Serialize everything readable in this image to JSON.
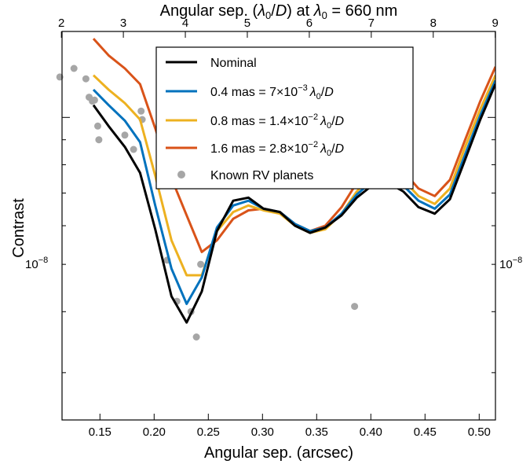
{
  "chart_data": {
    "type": "line",
    "title": "",
    "xlabel": "Angular sep. (arcsec)",
    "ylabel": "Contrast",
    "top_xlabel": {
      "prefix": "Angular sep. (",
      "lam": "λ",
      "sub": "0",
      "mid": "/",
      "D": "D",
      "suffix1": ") at ",
      "lam2": "λ",
      "sub2": "0",
      "suffix2": " = 660 nm"
    },
    "xlim": [
      0.115,
      0.515
    ],
    "ylim": [
      2.4e-09,
      1.5e-08
    ],
    "yscale": "log",
    "xticks": [
      0.15,
      0.2,
      0.25,
      0.3,
      0.35,
      0.4,
      0.45,
      0.5
    ],
    "xtick_labels": [
      "0.15",
      "0.20",
      "0.25",
      "0.30",
      "0.35",
      "0.40",
      "0.45",
      "0.50"
    ],
    "top_xticks": [
      2,
      3,
      4,
      5,
      6,
      7,
      8,
      9
    ],
    "top_xtick_labels": [
      "2",
      "3",
      "4",
      "5",
      "6",
      "7",
      "8",
      "9"
    ],
    "top_axis_arcsec_per_unit": 0.0572,
    "ytick_major": 1e-08,
    "ytick_label": {
      "base": "10",
      "exp": "−8"
    },
    "grid": false,
    "legend_position": "top-center",
    "series": [
      {
        "name": "Nominal",
        "color": "#000000",
        "x": [
          0.144,
          0.158,
          0.173,
          0.187,
          0.201,
          0.216,
          0.23,
          0.244,
          0.258,
          0.273,
          0.287,
          0.301,
          0.316,
          0.33,
          0.344,
          0.358,
          0.373,
          0.387,
          0.401,
          0.416,
          0.43,
          0.444,
          0.459,
          0.473,
          0.487,
          0.501,
          0.515
        ],
        "y": [
          1.06e-08,
          9.6e-09,
          8.7e-09,
          7.7e-09,
          5.9e-09,
          4.3e-09,
          3.8e-09,
          4.4e-09,
          5.85e-09,
          6.75e-09,
          6.85e-09,
          6.5e-09,
          6.4e-09,
          6e-09,
          5.8e-09,
          5.95e-09,
          6.3e-09,
          6.85e-09,
          7.25e-09,
          7.35e-09,
          7.05e-09,
          6.55e-09,
          6.35e-09,
          6.8e-09,
          8.2e-09,
          9.9e-09,
          1.17e-08
        ]
      },
      {
        "name": "0.4 mas = 7 × 10−3 λ0/D",
        "label_parts": {
          "pre": "0.4 mas = 7",
          "times": "×",
          "base": "10",
          "exp": "−3",
          "lam": "λ",
          "sub": "0",
          "slash": "/",
          "D": "D"
        },
        "color": "#0072bd",
        "x": [
          0.144,
          0.158,
          0.173,
          0.187,
          0.201,
          0.216,
          0.23,
          0.244,
          0.258,
          0.273,
          0.287,
          0.301,
          0.316,
          0.33,
          0.344,
          0.358,
          0.373,
          0.387,
          0.401,
          0.416,
          0.43,
          0.444,
          0.459,
          0.473,
          0.487,
          0.501,
          0.515
        ],
        "y": [
          1.14e-08,
          1.06e-08,
          9.85e-09,
          8.9e-09,
          6.6e-09,
          4.9e-09,
          4.15e-09,
          4.7e-09,
          5.95e-09,
          6.6e-09,
          6.75e-09,
          6.5e-09,
          6.4e-09,
          6.05e-09,
          5.85e-09,
          5.95e-09,
          6.35e-09,
          6.95e-09,
          7.4e-09,
          7.55e-09,
          7.25e-09,
          6.75e-09,
          6.5e-09,
          6.95e-09,
          8.4e-09,
          1.01e-08,
          1.19e-08
        ]
      },
      {
        "name": "0.8 mas = 1.4 × 10−2 λ0/D",
        "label_parts": {
          "pre": "0.8 mas = 1.4",
          "times": "×",
          "base": "10",
          "exp": "−2",
          "lam": "λ",
          "sub": "0",
          "slash": "/",
          "D": "D"
        },
        "color": "#edb120",
        "x": [
          0.144,
          0.158,
          0.173,
          0.187,
          0.201,
          0.216,
          0.23,
          0.244,
          0.258,
          0.273,
          0.287,
          0.301,
          0.316,
          0.33,
          0.344,
          0.358,
          0.373,
          0.387,
          0.401,
          0.416,
          0.43,
          0.444,
          0.459,
          0.473,
          0.487,
          0.501,
          0.515
        ],
        "y": [
          1.22e-08,
          1.14e-08,
          1.07e-08,
          9.9e-09,
          7.6e-09,
          5.6e-09,
          4.75e-09,
          4.75e-09,
          5.85e-09,
          6.4e-09,
          6.6e-09,
          6.45e-09,
          6.35e-09,
          6e-09,
          5.8e-09,
          5.9e-09,
          6.35e-09,
          7.05e-09,
          7.6e-09,
          7.75e-09,
          7.45e-09,
          6.9e-09,
          6.65e-09,
          7.15e-09,
          8.7e-09,
          1.04e-08,
          1.22e-08
        ]
      },
      {
        "name": "1.6 mas = 2.8 × 10−2 λ0/D",
        "label_parts": {
          "pre": "1.6 mas = 2.8",
          "times": "×",
          "base": "10",
          "exp": "−2",
          "lam": "λ",
          "sub": "0",
          "slash": "/",
          "D": "D"
        },
        "color": "#d95319",
        "x": [
          0.144,
          0.158,
          0.173,
          0.187,
          0.201,
          0.216,
          0.23,
          0.244,
          0.258,
          0.273,
          0.287,
          0.301,
          0.316,
          0.33,
          0.344,
          0.358,
          0.373,
          0.387,
          0.401,
          0.416,
          0.43,
          0.444,
          0.459,
          0.473,
          0.487,
          0.501,
          0.515
        ],
        "y": [
          1.45e-08,
          1.34e-08,
          1.26e-08,
          1.17e-08,
          9.5e-09,
          7.5e-09,
          6.3e-09,
          5.3e-09,
          5.6e-09,
          6.2e-09,
          6.45e-09,
          6.5e-09,
          6.4e-09,
          6.05e-09,
          5.85e-09,
          6e-09,
          6.55e-09,
          7.35e-09,
          8.05e-09,
          8.2e-09,
          7.75e-09,
          7.15e-09,
          6.9e-09,
          7.45e-09,
          9e-09,
          1.08e-08,
          1.27e-08
        ]
      }
    ],
    "scatter": {
      "name": "Known RV planets",
      "color": "#a6a6a6",
      "x": [
        0.113,
        0.126,
        0.137,
        0.14,
        0.143,
        0.145,
        0.148,
        0.149,
        0.173,
        0.181,
        0.188,
        0.189,
        0.212,
        0.221,
        0.234,
        0.239,
        0.243,
        0.385
      ],
      "y": [
        1.21e-08,
        1.26e-08,
        1.2e-08,
        1.1e-08,
        1.08e-08,
        1.085e-08,
        9.6e-09,
        9e-09,
        9.2e-09,
        8.6e-09,
        1.03e-08,
        9.9e-09,
        5.1e-09,
        4.2e-09,
        4e-09,
        3.55e-09,
        5e-09,
        4.1e-09
      ]
    }
  }
}
